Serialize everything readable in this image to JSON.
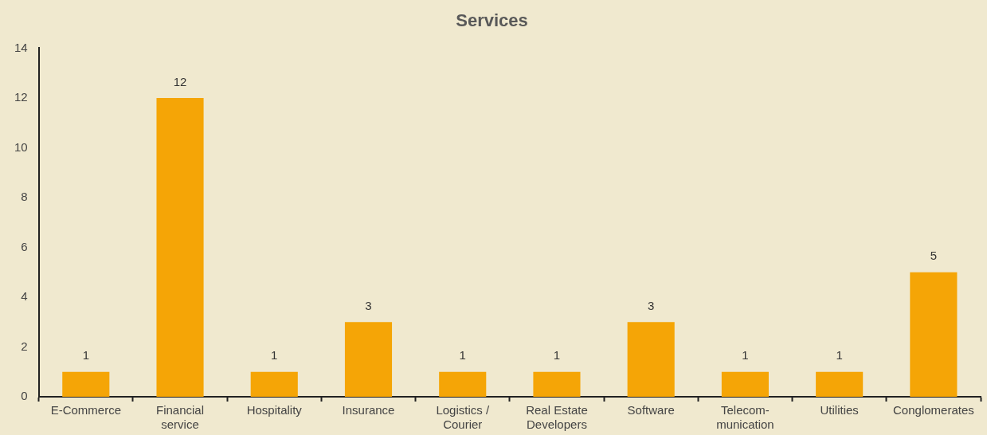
{
  "chart_data": {
    "type": "bar",
    "title": "Services",
    "categories": [
      "E-Commerce",
      "Financial service",
      "Hospitality",
      "Insurance",
      "Logistics / Courier",
      "Real Estate Developers",
      "Software",
      "Telecom- munication",
      "Utilities",
      "Conglomerates"
    ],
    "values": [
      1,
      12,
      1,
      3,
      1,
      1,
      3,
      1,
      1,
      5
    ],
    "color": "#f5a506",
    "ylim": [
      0,
      14
    ],
    "yticks": [
      0,
      2,
      4,
      6,
      8,
      10,
      12,
      14
    ],
    "grid": false,
    "legend": false,
    "data_labels": true
  }
}
